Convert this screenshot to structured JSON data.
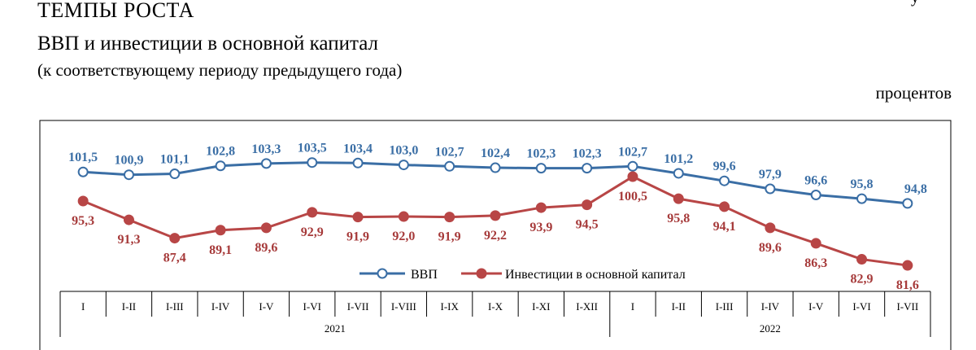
{
  "header": {
    "section_title": "ТЕМПЫ РОСТА",
    "corner_mark": "у"
  },
  "chart_data": {
    "type": "line",
    "title": "ВВП и инвестиции в основной капитал",
    "subtitle": "(к соответствующему периоду предыдущего года)",
    "units": "процентов",
    "categories": [
      "I",
      "I-II",
      "I-III",
      "I-IV",
      "I-V",
      "I-VI",
      "I-VII",
      "I-VIII",
      "I-IX",
      "I-X",
      "I-XI",
      "I-XII",
      "I",
      "I-II",
      "I-III",
      "I-IV",
      "I-V",
      "I-VI",
      "I-VII"
    ],
    "groups": [
      {
        "label": "2021",
        "count": 12
      },
      {
        "label": "2022",
        "count": 7
      }
    ],
    "series": [
      {
        "name": "ВВП",
        "color": "#3a6ea5",
        "marker": "hollow-circle",
        "values": [
          101.5,
          100.9,
          101.1,
          102.8,
          103.3,
          103.5,
          103.4,
          103.0,
          102.7,
          102.4,
          102.3,
          102.3,
          102.7,
          101.2,
          99.6,
          97.9,
          96.6,
          95.8,
          94.8
        ],
        "labels": [
          "101,5",
          "100,9",
          "101,1",
          "102,8",
          "103,3",
          "103,5",
          "103,4",
          "103,0",
          "102,7",
          "102,4",
          "102,3",
          "102,3",
          "102,7",
          "101,2",
          "99,6",
          "97,9",
          "96,6",
          "95,8",
          "94,8"
        ]
      },
      {
        "name": "Инвестиции в основной капитал",
        "color": "#b84646",
        "marker": "filled-circle",
        "values": [
          95.3,
          91.3,
          87.4,
          89.1,
          89.6,
          92.9,
          91.9,
          92.0,
          91.9,
          92.2,
          93.9,
          94.5,
          100.5,
          95.8,
          94.1,
          89.6,
          86.3,
          82.9,
          81.6
        ],
        "labels": [
          "95,3",
          "91,3",
          "87,4",
          "89,1",
          "89,6",
          "92,9",
          "91,9",
          "92,0",
          "91,9",
          "92,2",
          "93,9",
          "94,5",
          "100,5",
          "95,8",
          "94,1",
          "89,6",
          "86,3",
          "82,9",
          "81,6"
        ]
      }
    ],
    "legend_position": "bottom-center",
    "grid": false
  }
}
